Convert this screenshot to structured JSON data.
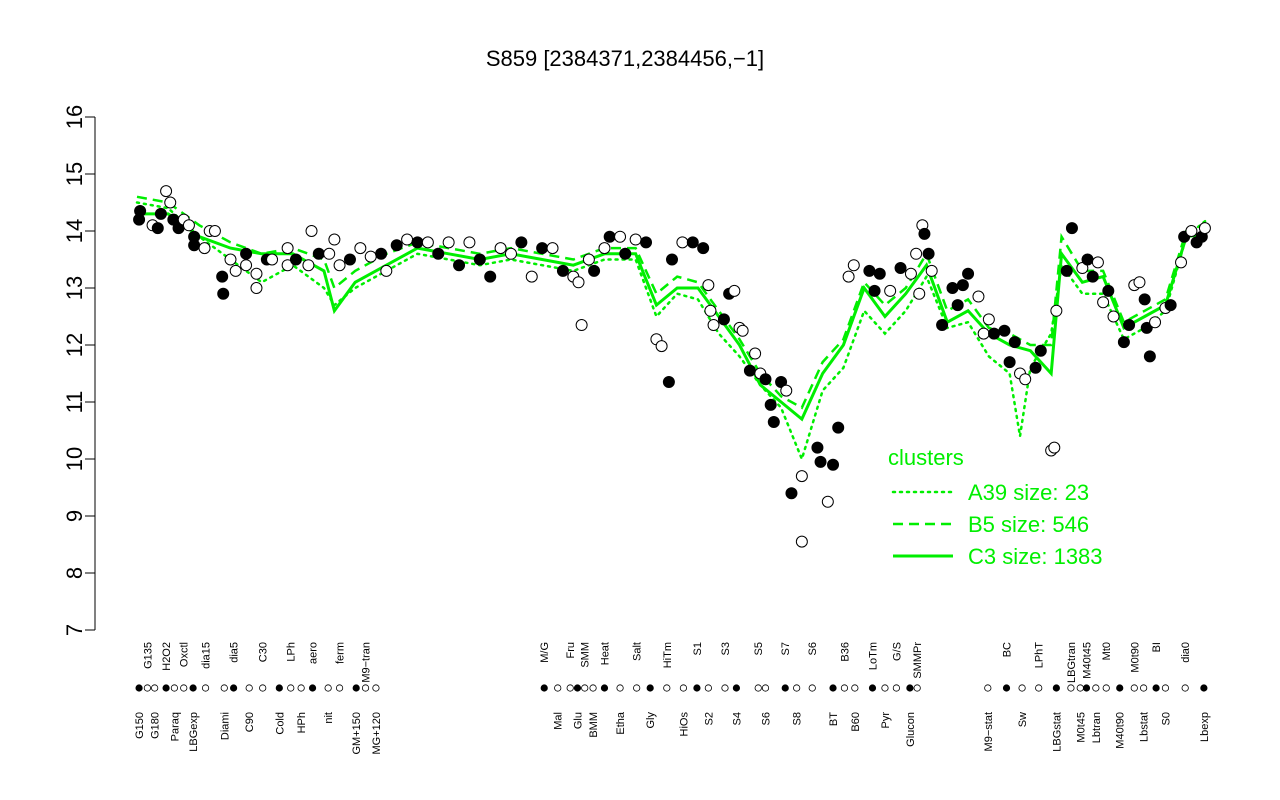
{
  "chart_data": {
    "type": "scatter",
    "title": "S859 [2384371,2384456,−1]",
    "ylim": [
      7,
      16
    ],
    "yticks": [
      7,
      8,
      9,
      10,
      11,
      12,
      13,
      14,
      15,
      16
    ],
    "xlim": [
      0,
      103
    ],
    "xticks": [
      {
        "value": 0.2,
        "label": "G150"
      },
      {
        "value": 1,
        "label": "G135"
      },
      {
        "value": 1.7,
        "label": "G180"
      },
      {
        "value": 2.8,
        "label": "H2O2"
      },
      {
        "value": 3.6,
        "label": "Paraq"
      },
      {
        "value": 4.5,
        "label": "Oxctl"
      },
      {
        "value": 5.4,
        "label": "LBGexp"
      },
      {
        "value": 6.6,
        "label": "dia15"
      },
      {
        "value": 8.4,
        "label": "Diami"
      },
      {
        "value": 9.3,
        "label": "dia5"
      },
      {
        "value": 10.8,
        "label": "C90"
      },
      {
        "value": 12.1,
        "label": "C30"
      },
      {
        "value": 13.7,
        "label": "Cold"
      },
      {
        "value": 14.8,
        "label": "LPh"
      },
      {
        "value": 15.8,
        "label": "HPh"
      },
      {
        "value": 16.9,
        "label": "aero"
      },
      {
        "value": 18.4,
        "label": "nit"
      },
      {
        "value": 19.5,
        "label": "ferm"
      },
      {
        "value": 21.1,
        "label": "GM+150"
      },
      {
        "value": 22,
        "label": "M9−tran"
      },
      {
        "value": 23,
        "label": "MG+120"
      },
      {
        "value": 39.2,
        "label": "M/G"
      },
      {
        "value": 40.5,
        "label": "Mal"
      },
      {
        "value": 41.7,
        "label": "Fru"
      },
      {
        "value": 42.4,
        "label": "Glu"
      },
      {
        "value": 43.1,
        "label": "SMM"
      },
      {
        "value": 43.9,
        "label": "BMM"
      },
      {
        "value": 45,
        "label": "Heat"
      },
      {
        "value": 46.5,
        "label": "Etha"
      },
      {
        "value": 48.1,
        "label": "Salt"
      },
      {
        "value": 49.4,
        "label": "Gly"
      },
      {
        "value": 51,
        "label": "HiTm"
      },
      {
        "value": 52.6,
        "label": "HiOs"
      },
      {
        "value": 53.9,
        "label": "S1"
      },
      {
        "value": 55,
        "label": "S2"
      },
      {
        "value": 56.6,
        "label": "S3"
      },
      {
        "value": 57.7,
        "label": "S4"
      },
      {
        "value": 59.8,
        "label": "S5"
      },
      {
        "value": 60.5,
        "label": "S6"
      },
      {
        "value": 62.4,
        "label": "S7"
      },
      {
        "value": 63.5,
        "label": "S8"
      },
      {
        "value": 65,
        "label": "S6"
      },
      {
        "value": 67,
        "label": "BT"
      },
      {
        "value": 68.1,
        "label": "B36"
      },
      {
        "value": 69.1,
        "label": "B60"
      },
      {
        "value": 70.8,
        "label": "LoTm"
      },
      {
        "value": 72,
        "label": "Pyr"
      },
      {
        "value": 73.1,
        "label": "G/S"
      },
      {
        "value": 74.4,
        "label": "Glucon"
      },
      {
        "value": 75.1,
        "label": "SMMPr"
      },
      {
        "value": 81.9,
        "label": "M9−stat"
      },
      {
        "value": 83.7,
        "label": "BC"
      },
      {
        "value": 85.2,
        "label": "Sw"
      },
      {
        "value": 86.8,
        "label": "LPhT"
      },
      {
        "value": 88.5,
        "label": "LBGstat"
      },
      {
        "value": 89.9,
        "label": "LBGtran"
      },
      {
        "value": 90.8,
        "label": "M0t45"
      },
      {
        "value": 91.4,
        "label": "M40t45"
      },
      {
        "value": 92.3,
        "label": "Lbtran"
      },
      {
        "value": 93.3,
        "label": "Mt0"
      },
      {
        "value": 94.6,
        "label": "M40t90"
      },
      {
        "value": 96,
        "label": "M0t90"
      },
      {
        "value": 96.9,
        "label": "Lbstat"
      },
      {
        "value": 98.1,
        "label": "BI"
      },
      {
        "value": 99,
        "label": "S0"
      },
      {
        "value": 100.9,
        "label": "dia0"
      },
      {
        "value": 102.7,
        "label": "Lbexp"
      }
    ],
    "points": {
      "x": [
        0.2,
        0.3,
        1.5,
        2,
        2.3,
        2.8,
        3.2,
        3.5,
        4,
        4.5,
        5,
        5.5,
        5.5,
        6.5,
        7,
        7.5,
        8.2,
        8.3,
        9,
        9.5,
        10.5,
        10.5,
        11.5,
        11.5,
        12.5,
        13,
        14.5,
        14.5,
        15.3,
        16.5,
        16.8,
        17.5,
        18.5,
        19,
        19.5,
        20.5,
        21.5,
        22.5,
        23.5,
        24,
        25,
        26,
        27,
        28,
        29,
        30,
        31,
        32,
        33,
        34,
        35,
        36,
        37,
        38,
        39,
        40,
        41,
        42,
        42.5,
        42.8,
        43.5,
        44,
        45,
        45.5,
        46.5,
        47,
        48,
        49,
        50,
        50.5,
        51.2,
        51.5,
        52.5,
        53.5,
        54.5,
        55,
        55.2,
        55.5,
        56.5,
        57,
        57.5,
        58,
        58.3,
        59,
        59.5,
        60,
        60.5,
        61,
        61.3,
        62,
        62.5,
        63,
        64,
        64,
        65.5,
        65.8,
        66.5,
        67,
        67.5,
        68.5,
        69,
        70.5,
        71,
        71.5,
        72.5,
        73.5,
        74.5,
        75,
        75.3,
        75.6,
        75.8,
        76.2,
        76.5,
        77.5,
        78.5,
        79,
        79.5,
        80,
        81,
        81.5,
        82,
        82.5,
        83.5,
        84,
        84.5,
        85,
        85.5,
        86.5,
        87,
        88,
        88.3,
        88.5,
        89.5,
        90,
        91,
        91.5,
        92,
        92.5,
        93,
        93.5,
        94,
        95,
        95.5,
        96,
        96.5,
        97,
        97.2,
        97.5,
        98,
        99,
        99.5,
        100.5,
        100.8,
        101.5,
        102,
        102.5,
        102.8
      ],
      "values": [
        14.2,
        14.35,
        14.1,
        14.05,
        14.3,
        14.7,
        14.5,
        14.2,
        14.05,
        14.2,
        14.1,
        13.9,
        13.75,
        13.7,
        14,
        14,
        13.2,
        12.9,
        13.5,
        13.3,
        13.6,
        13.4,
        13.25,
        13,
        13.5,
        13.5,
        13.7,
        13.4,
        13.5,
        13.4,
        14,
        13.6,
        13.6,
        13.85,
        13.4,
        13.5,
        13.7,
        13.55,
        13.6,
        13.3,
        13.75,
        13.85,
        13.8,
        13.8,
        13.6,
        13.8,
        13.4,
        13.8,
        13.5,
        13.2,
        13.7,
        13.6,
        13.8,
        13.2,
        13.7,
        13.7,
        13.3,
        13.2,
        13.1,
        12.35,
        13.5,
        13.3,
        13.7,
        13.9,
        13.9,
        13.6,
        13.85,
        13.8,
        12.1,
        11.98,
        11.35,
        13.5,
        13.8,
        13.8,
        13.7,
        13.05,
        12.6,
        12.35,
        12.45,
        12.9,
        12.95,
        12.3,
        12.25,
        11.55,
        11.85,
        11.5,
        11.4,
        10.95,
        10.65,
        11.35,
        11.2,
        9.4,
        8.55,
        9.7,
        10.2,
        9.95,
        9.25,
        9.9,
        10.55,
        13.2,
        13.4,
        13.3,
        12.95,
        13.25,
        12.95,
        13.35,
        13.25,
        13.6,
        12.9,
        14.1,
        13.95,
        13.6,
        13.3,
        12.35,
        13,
        12.7,
        13.05,
        13.25,
        12.85,
        12.2,
        12.45,
        12.2,
        12.25,
        11.7,
        12.05,
        11.5,
        11.4,
        11.6,
        11.9,
        10.15,
        10.2,
        12.6,
        13.3,
        14.05,
        13.35,
        13.5,
        13.2,
        13.45,
        12.75,
        12.95,
        12.5,
        12.05,
        12.35,
        13.05,
        13.1,
        12.8,
        12.3,
        11.8,
        12.4,
        12.65,
        12.7,
        13.45,
        13.9,
        14,
        13.8,
        13.9,
        14.05
      ],
      "filled": [
        true,
        true,
        false,
        true,
        true,
        false,
        false,
        true,
        true,
        false,
        false,
        true,
        true,
        false,
        false,
        false,
        true,
        true,
        false,
        false,
        true,
        false,
        false,
        false,
        true,
        false,
        false,
        false,
        true,
        false,
        false,
        true,
        false,
        false,
        false,
        true,
        false,
        false,
        true,
        false,
        true,
        false,
        true,
        false,
        true,
        false,
        true,
        false,
        true,
        true,
        false,
        false,
        true,
        false,
        true,
        false,
        true,
        false,
        false,
        false,
        false,
        true,
        false,
        true,
        false,
        true,
        false,
        true,
        false,
        false,
        true,
        true,
        false,
        true,
        true,
        false,
        false,
        false,
        true,
        true,
        false,
        false,
        false,
        true,
        false,
        false,
        true,
        true,
        true,
        true,
        false,
        true,
        false,
        false,
        true,
        true,
        false,
        true,
        true,
        false,
        false,
        true,
        true,
        true,
        false,
        true,
        false,
        false,
        false,
        false,
        true,
        true,
        false,
        true,
        true,
        true,
        true,
        true,
        false,
        false,
        false,
        true,
        true,
        true,
        true,
        false,
        false,
        true,
        true,
        false,
        false,
        false,
        true,
        true,
        false,
        true,
        true,
        false,
        false,
        true,
        false,
        true,
        true,
        false,
        false,
        true,
        true,
        true,
        false,
        false,
        true,
        false,
        true,
        false,
        true,
        true,
        false
      ]
    },
    "legend_title": "clusters",
    "series": [
      {
        "name": "A39 size: 23",
        "color": "#00ee00",
        "style": "dotted",
        "x": [
          0,
          3,
          6,
          9,
          12,
          15,
          18,
          19,
          21,
          24,
          27,
          30,
          33,
          36,
          39,
          42,
          45,
          48,
          50,
          52,
          54,
          56,
          58,
          60,
          62,
          64,
          66,
          68,
          70,
          72,
          74,
          76,
          78,
          80,
          82,
          84,
          85,
          86,
          88,
          89,
          91,
          93,
          95,
          97,
          99,
          101,
          103
        ],
        "values": [
          14.5,
          14.4,
          13.9,
          13.5,
          13.1,
          13.4,
          13.0,
          12.7,
          13.0,
          13.3,
          13.6,
          13.5,
          13.4,
          13.5,
          13.4,
          13.3,
          13.5,
          13.5,
          12.5,
          12.9,
          12.8,
          12.2,
          11.8,
          11.3,
          10.9,
          10.0,
          11.2,
          11.6,
          12.6,
          12.2,
          12.6,
          13.2,
          12.3,
          12.4,
          11.8,
          11.5,
          10.4,
          11.6,
          12.2,
          13.4,
          12.9,
          12.9,
          12.1,
          12.3,
          12.6,
          13.9,
          14.2
        ]
      },
      {
        "name": "B5 size: 546",
        "color": "#00ee00",
        "style": "dashed",
        "x": [
          0,
          3,
          6,
          9,
          12,
          15,
          18,
          19,
          21,
          24,
          27,
          30,
          33,
          36,
          39,
          42,
          45,
          48,
          50,
          52,
          54,
          56,
          58,
          60,
          62,
          64,
          66,
          68,
          70,
          72,
          74,
          76,
          78,
          80,
          82,
          84,
          86,
          88,
          89,
          91,
          93,
          95,
          97,
          99,
          101,
          103
        ],
        "values": [
          14.6,
          14.5,
          14.1,
          13.8,
          13.6,
          13.7,
          13.5,
          13.0,
          13.3,
          13.6,
          13.8,
          13.7,
          13.6,
          13.7,
          13.6,
          13.5,
          13.7,
          13.7,
          12.9,
          13.2,
          13.1,
          12.6,
          12.1,
          11.5,
          11.1,
          10.9,
          11.7,
          12.1,
          13.1,
          12.7,
          13.0,
          13.6,
          12.6,
          12.8,
          12.3,
          12.2,
          12.0,
          12.0,
          13.9,
          13.3,
          13.3,
          12.4,
          12.6,
          12.8,
          14.0,
          14.1
        ]
      },
      {
        "name": "C3 size: 1383",
        "color": "#00ee00",
        "style": "solid",
        "x": [
          0,
          3,
          6,
          9,
          12,
          15,
          18,
          19,
          21,
          24,
          27,
          30,
          33,
          36,
          39,
          42,
          45,
          48,
          50,
          52,
          54,
          56,
          58,
          60,
          62,
          64,
          66,
          68,
          70,
          72,
          74,
          76,
          78,
          80,
          82,
          84,
          86,
          88,
          89,
          91,
          93,
          95,
          97,
          99,
          101,
          103
        ],
        "values": [
          14.3,
          14.3,
          13.9,
          13.7,
          13.6,
          13.6,
          13.3,
          12.6,
          13.1,
          13.4,
          13.7,
          13.6,
          13.5,
          13.6,
          13.5,
          13.4,
          13.6,
          13.6,
          12.7,
          13.0,
          13.0,
          12.5,
          12.0,
          11.3,
          11.0,
          10.7,
          11.5,
          12.0,
          13.0,
          12.5,
          12.9,
          13.4,
          12.4,
          12.6,
          12.2,
          12.0,
          11.9,
          11.5,
          13.6,
          13.1,
          13.2,
          12.3,
          12.5,
          12.7,
          13.9,
          13.95
        ]
      }
    ]
  }
}
